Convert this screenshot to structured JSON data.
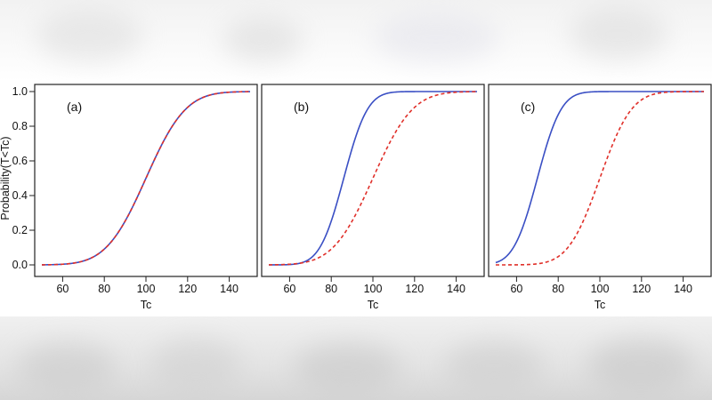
{
  "chart_data": [
    {
      "type": "line",
      "panel_label": "(a)",
      "xlabel": "Tc",
      "ylabel": "Probability(T<Tc)",
      "xlim": [
        50,
        150
      ],
      "ylim": [
        0,
        1
      ],
      "x_ticks": [
        "60",
        "80",
        "100",
        "120",
        "140"
      ],
      "y_ticks": [
        "0.0",
        "0.2",
        "0.4",
        "0.6",
        "0.8",
        "1.0"
      ],
      "series": [
        {
          "name": "solid",
          "style": "solid",
          "color": "#3a4fc4",
          "mean": 100,
          "sd": 15
        },
        {
          "name": "dashed",
          "style": "dashed",
          "color": "#e0302a",
          "mean": 100,
          "sd": 15
        }
      ]
    },
    {
      "type": "line",
      "panel_label": "(b)",
      "xlabel": "Tc",
      "ylabel": "",
      "xlim": [
        50,
        150
      ],
      "ylim": [
        0,
        1
      ],
      "x_ticks": [
        "60",
        "80",
        "100",
        "120",
        "140"
      ],
      "y_ticks": [],
      "series": [
        {
          "name": "solid",
          "style": "solid",
          "color": "#3a4fc4",
          "mean": 86,
          "sd": 9
        },
        {
          "name": "dashed",
          "style": "dashed",
          "color": "#e0302a",
          "mean": 100,
          "sd": 15
        }
      ]
    },
    {
      "type": "line",
      "panel_label": "(c)",
      "xlabel": "Tc",
      "ylabel": "",
      "xlim": [
        50,
        150
      ],
      "ylim": [
        0,
        1
      ],
      "x_ticks": [
        "60",
        "80",
        "100",
        "120",
        "140"
      ],
      "y_ticks": [],
      "series": [
        {
          "name": "solid",
          "style": "solid",
          "color": "#3a4fc4",
          "mean": 70,
          "sd": 9
        },
        {
          "name": "dashed",
          "style": "dashed",
          "color": "#e0302a",
          "mean": 100,
          "sd": 12
        }
      ]
    }
  ]
}
